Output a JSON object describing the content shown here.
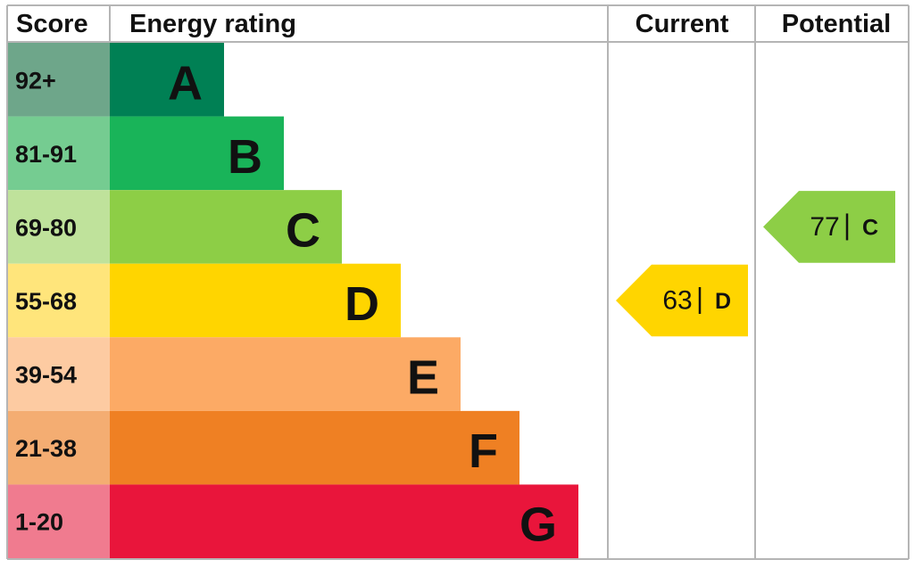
{
  "chart_data": {
    "type": "epc",
    "headers": {
      "score": "Score",
      "rating": "Energy rating",
      "current": "Current",
      "potential": "Potential"
    },
    "bands": [
      {
        "score": "92+",
        "letter": "A",
        "color": "#008054",
        "score_color": "#6ea68a"
      },
      {
        "score": "81-91",
        "letter": "B",
        "color": "#19b459",
        "score_color": "#75cc91"
      },
      {
        "score": "69-80",
        "letter": "C",
        "color": "#8dce46",
        "score_color": "#bfe29b"
      },
      {
        "score": "55-68",
        "letter": "D",
        "color": "#ffd500",
        "score_color": "#ffe57b"
      },
      {
        "score": "39-54",
        "letter": "E",
        "color": "#fcaa65",
        "score_color": "#fdcba2"
      },
      {
        "score": "21-38",
        "letter": "F",
        "color": "#ef8023",
        "score_color": "#f4ad72"
      },
      {
        "score": "1-20",
        "letter": "G",
        "color": "#e9153b",
        "score_color": "#f07b8f"
      }
    ],
    "current": {
      "value": 63,
      "letter": "D",
      "color": "#ffd500"
    },
    "potential": {
      "value": 77,
      "letter": "C",
      "color": "#8dce46"
    }
  }
}
